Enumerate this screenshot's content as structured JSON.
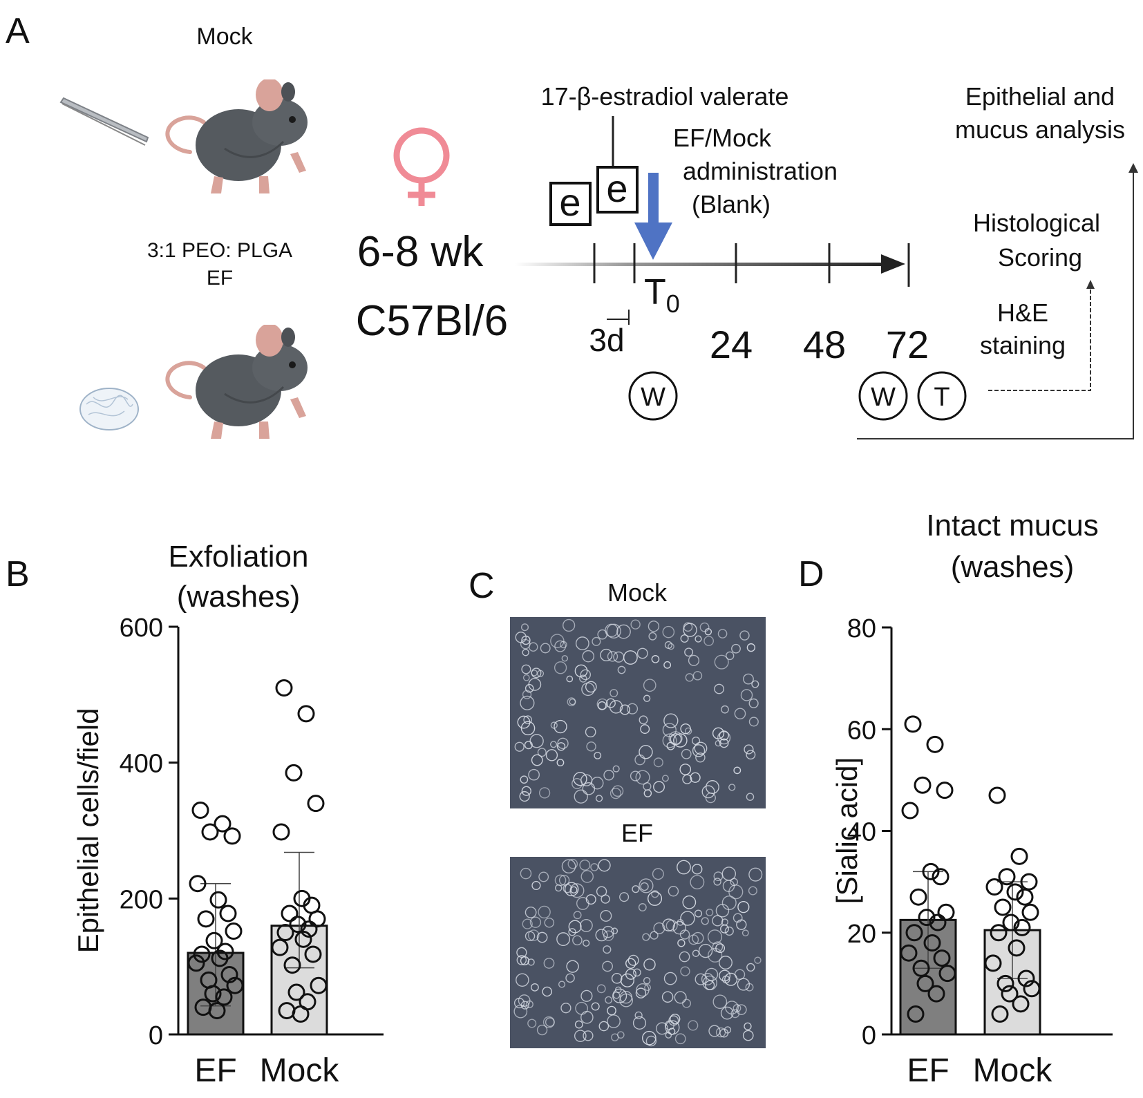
{
  "panel_labels": {
    "a": "A",
    "b": "B",
    "c": "C",
    "d": "D"
  },
  "panel_a": {
    "mock_label": "Mock",
    "ef_label_line1": "3:1 PEO: PLGA",
    "ef_label_line2": "EF",
    "age": "6-8 wk",
    "strain": "C57Bl/6",
    "estradiol_label": "17-β-estradiol valerate",
    "admin_line1": "EF/Mock",
    "admin_line2": "administration",
    "admin_line3": "(Blank)",
    "e_marker": "e",
    "t0_main": "T",
    "t0_sub": "0",
    "interval_label": "3d",
    "timepoints": [
      "24",
      "48",
      "72"
    ],
    "wash_marker": "W",
    "tissue_marker": "T",
    "analysis_line1": "Epithelial and",
    "analysis_line2": "mucus analysis",
    "histology_line1": "Histological",
    "histology_line2": "Scoring",
    "he_line1": "H&E",
    "he_line2": "staining",
    "colors": {
      "female_symbol": "#f08b96",
      "arrow": "#4f73c4",
      "mouse": "#555a5f",
      "ear": "#d9a39a"
    }
  },
  "panel_c": {
    "top_label": "Mock",
    "bottom_label": "EF",
    "image_bg": "#4a5263"
  },
  "chart_data": [
    {
      "type": "bar",
      "panel": "B",
      "title_line1": "Exfoliation",
      "title_line2": "(washes)",
      "ylabel": "Epithelial cells/field",
      "ylim": [
        0,
        600
      ],
      "yticks": [
        0,
        200,
        400,
        600
      ],
      "categories": [
        "EF",
        "Mock"
      ],
      "values": [
        120,
        160
      ],
      "error_upper": [
        222,
        268
      ],
      "error_lower": [
        42,
        98
      ],
      "bar_colors": [
        "#7f7f7f",
        "#dcdcdc"
      ],
      "points": [
        [
          330,
          310,
          298,
          292,
          222,
          198,
          178,
          170,
          152,
          138,
          122,
          118,
          112,
          105,
          88,
          80,
          72,
          60,
          55,
          40,
          35
        ],
        [
          510,
          472,
          385,
          340,
          298,
          200,
          190,
          178,
          170,
          162,
          155,
          150,
          140,
          128,
          118,
          102,
          72,
          62,
          48,
          35,
          30
        ]
      ]
    },
    {
      "type": "bar",
      "panel": "D",
      "title_line1": "Intact mucus",
      "title_line2": "(washes)",
      "ylabel": "[Sialic acid]",
      "ylim": [
        0,
        80
      ],
      "yticks": [
        0,
        20,
        40,
        60,
        80
      ],
      "categories": [
        "EF",
        "Mock"
      ],
      "values": [
        22.5,
        20.5
      ],
      "error_upper": [
        32,
        30
      ],
      "error_lower": [
        13,
        11
      ],
      "bar_colors": [
        "#7f7f7f",
        "#dcdcdc"
      ],
      "points": [
        [
          61,
          57,
          49,
          48,
          44,
          32,
          31,
          27,
          24,
          23,
          22,
          20,
          18,
          16,
          15,
          13,
          12,
          10,
          8,
          4
        ],
        [
          47,
          35,
          31,
          30,
          29,
          28,
          27,
          25,
          24,
          22,
          21,
          20,
          17,
          14,
          11,
          10,
          9,
          8,
          6,
          4
        ]
      ]
    }
  ]
}
